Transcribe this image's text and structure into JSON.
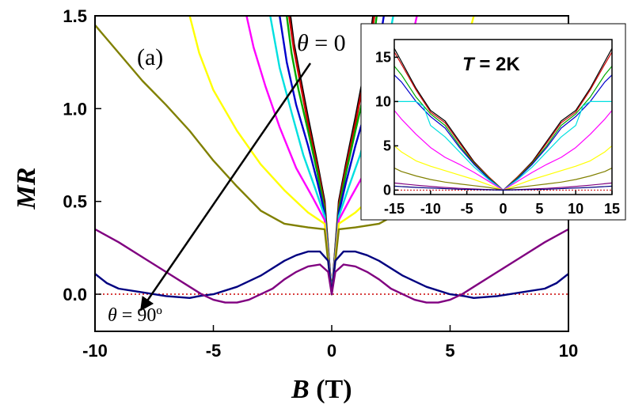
{
  "chart_data": [
    {
      "type": "line",
      "panel_label": "(a)",
      "xlabel_var": "B",
      "xlabel_unit": " (T)",
      "ylabel": "MR",
      "xlim": [
        -10,
        10
      ],
      "ylim": [
        -0.2,
        1.5
      ],
      "xticks": [
        -10,
        -5,
        0,
        5,
        10
      ],
      "xtick_labels": [
        "-10",
        "-5",
        "0",
        "5",
        "10"
      ],
      "yticks": [
        0.0,
        0.5,
        1.0,
        1.5
      ],
      "ytick_labels": [
        "0.0",
        "0.5",
        "1.0",
        "1.5"
      ],
      "reference_line": {
        "y": 0,
        "style": "dotted",
        "color": "#cc0000"
      },
      "annotations": {
        "theta_top_var": "θ",
        "theta_top_text": " = 0",
        "theta_bottom_var": "θ",
        "theta_bottom_text": " = 90º"
      },
      "series": [
        {
          "color": "#000000",
          "x": [
            0,
            0.3,
            0.6,
            1.0,
            1.3,
            1.6,
            1.75
          ],
          "y": [
            0,
            0.5,
            0.7,
            0.95,
            1.15,
            1.35,
            1.5
          ]
        },
        {
          "color": "#cc0000",
          "x": [
            0,
            0.3,
            0.6,
            1.0,
            1.3,
            1.6,
            1.8
          ],
          "y": [
            0,
            0.48,
            0.68,
            0.92,
            1.12,
            1.32,
            1.5
          ]
        },
        {
          "color": "#00aa00",
          "x": [
            0,
            0.3,
            0.6,
            1.0,
            1.4,
            1.7,
            1.9
          ],
          "y": [
            0,
            0.46,
            0.65,
            0.88,
            1.1,
            1.3,
            1.5
          ]
        },
        {
          "color": "#0000cc",
          "x": [
            0,
            0.3,
            0.6,
            1.0,
            1.5,
            1.9,
            2.2
          ],
          "y": [
            0,
            0.44,
            0.6,
            0.8,
            1.02,
            1.25,
            1.5
          ]
        },
        {
          "color": "#00e0e0",
          "x": [
            0,
            0.3,
            0.7,
            1.2,
            1.7,
            2.2,
            2.6
          ],
          "y": [
            0,
            0.42,
            0.57,
            0.75,
            0.98,
            1.22,
            1.5
          ]
        },
        {
          "color": "#ff00ff",
          "x": [
            0,
            0.3,
            0.8,
            1.5,
            2.2,
            2.8,
            3.3,
            3.6
          ],
          "y": [
            0,
            0.4,
            0.52,
            0.68,
            0.9,
            1.12,
            1.33,
            1.5
          ]
        },
        {
          "color": "#ffff00",
          "x": [
            0,
            0.3,
            1.0,
            2.0,
            3.0,
            4.0,
            5.0,
            5.6,
            6.0
          ],
          "y": [
            0,
            0.38,
            0.44,
            0.56,
            0.7,
            0.88,
            1.1,
            1.3,
            1.5
          ]
        },
        {
          "color": "#808000",
          "x": [
            0,
            0.3,
            1.0,
            2.0,
            3.0,
            4.0,
            5.0,
            6.0,
            7.0,
            8.0,
            9.0,
            10.0
          ],
          "y": [
            0,
            0.35,
            0.36,
            0.38,
            0.45,
            0.58,
            0.72,
            0.88,
            1.02,
            1.15,
            1.3,
            1.45
          ]
        },
        {
          "color": "#000080",
          "x": [
            0,
            0.15,
            0.5,
            1.0,
            1.5,
            2.0,
            3.0,
            4.0,
            5.0,
            5.6,
            6.0,
            7.0,
            7.5,
            8.0,
            9.0,
            9.5,
            10.0
          ],
          "y": [
            0,
            0.18,
            0.23,
            0.23,
            0.21,
            0.18,
            0.1,
            0.04,
            0.0,
            -0.01,
            -0.02,
            -0.01,
            0.0,
            0.01,
            0.03,
            0.06,
            0.11
          ]
        },
        {
          "color": "#800080",
          "x": [
            0,
            0.15,
            0.5,
            1.0,
            1.5,
            2.0,
            2.5,
            3.0,
            3.5,
            4.0,
            4.5,
            5.0,
            5.5,
            6.0,
            7.0,
            8.0,
            9.0,
            10.0
          ],
          "y": [
            0,
            0.12,
            0.16,
            0.15,
            0.12,
            0.08,
            0.03,
            0.0,
            -0.03,
            -0.045,
            -0.045,
            -0.03,
            0.0,
            0.04,
            0.12,
            0.2,
            0.28,
            0.35
          ]
        }
      ]
    },
    {
      "type": "line",
      "title_var": "T",
      "title_text": " = 2K",
      "xlim": [
        -15,
        15
      ],
      "ylim": [
        -0.5,
        17
      ],
      "xticks": [
        -15,
        -10,
        -5,
        0,
        5,
        10,
        15
      ],
      "xtick_labels": [
        "-15",
        "-10",
        "-5",
        "0",
        "5",
        "10",
        "15"
      ],
      "yticks": [
        0,
        5,
        10,
        15
      ],
      "ytick_labels": [
        "0",
        "5",
        "10",
        "15"
      ],
      "reference_line": {
        "y": 0,
        "style": "dotted",
        "color": "#cc0000"
      },
      "series": [
        {
          "color": "#000000",
          "x": [
            0,
            2,
            4,
            6,
            8,
            10,
            12,
            14,
            15
          ],
          "y": [
            0,
            1.5,
            3.2,
            5.5,
            7.8,
            9.0,
            11.5,
            14.5,
            16.0
          ]
        },
        {
          "color": "#cc0000",
          "x": [
            0,
            2,
            4,
            6,
            8,
            10,
            12,
            14,
            15
          ],
          "y": [
            0,
            1.5,
            3.1,
            5.3,
            7.6,
            8.8,
            11.3,
            14.2,
            15.6
          ]
        },
        {
          "color": "#00aa00",
          "x": [
            0,
            2,
            4,
            6,
            8,
            10,
            12,
            14,
            15
          ],
          "y": [
            0,
            1.4,
            3.0,
            5.0,
            7.3,
            8.6,
            10.5,
            13.0,
            14.0
          ]
        },
        {
          "color": "#0000cc",
          "x": [
            0,
            2,
            4,
            6,
            8,
            10,
            12,
            14,
            15
          ],
          "y": [
            0,
            1.3,
            2.9,
            4.8,
            7.0,
            8.3,
            10.0,
            12.2,
            13.0
          ]
        },
        {
          "color": "#00e0e0",
          "x": [
            0,
            2,
            4,
            6,
            8,
            10,
            11,
            12,
            14,
            15
          ],
          "y": [
            0,
            1.2,
            2.6,
            4.3,
            6.0,
            7.3,
            9.5,
            10.0,
            10.0,
            10.0
          ]
        },
        {
          "color": "#ff00ff",
          "x": [
            0,
            2,
            4,
            6,
            8,
            10,
            12,
            14,
            15
          ],
          "y": [
            0,
            1.0,
            2.0,
            2.9,
            3.7,
            4.8,
            6.3,
            8.0,
            9.0
          ]
        },
        {
          "color": "#ffff00",
          "x": [
            0,
            2,
            4,
            6,
            8,
            10,
            12,
            14,
            15
          ],
          "y": [
            0,
            0.6,
            1.2,
            1.7,
            2.2,
            2.7,
            3.3,
            4.3,
            5.0
          ]
        },
        {
          "color": "#808000",
          "x": [
            0,
            2,
            4,
            6,
            8,
            10,
            12,
            14,
            15
          ],
          "y": [
            0,
            0.3,
            0.5,
            0.7,
            0.9,
            1.2,
            1.6,
            2.1,
            2.5
          ]
        },
        {
          "color": "#800080",
          "x": [
            0,
            3,
            6,
            9,
            12,
            15
          ],
          "y": [
            0,
            0.1,
            0.2,
            0.35,
            0.55,
            0.8
          ]
        },
        {
          "color": "#000080",
          "x": [
            0,
            3,
            6,
            9,
            12,
            15
          ],
          "y": [
            0,
            0.05,
            0.1,
            0.2,
            0.3,
            0.45
          ]
        }
      ]
    }
  ]
}
